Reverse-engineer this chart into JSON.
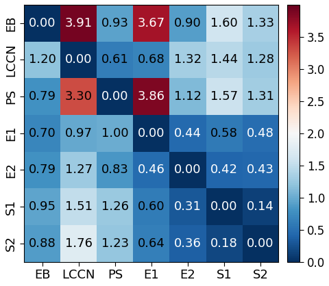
{
  "labels": [
    "EB",
    "LCCN",
    "PS",
    "E1",
    "E2",
    "S1",
    "S2"
  ],
  "matrix": [
    [
      0.0,
      3.91,
      0.93,
      3.67,
      0.9,
      1.6,
      1.33
    ],
    [
      1.2,
      0.0,
      0.61,
      0.68,
      1.32,
      1.44,
      1.28
    ],
    [
      0.79,
      3.3,
      0.0,
      3.86,
      1.12,
      1.57,
      1.31
    ],
    [
      0.7,
      0.97,
      1.0,
      0.0,
      0.44,
      0.58,
      0.48
    ],
    [
      0.79,
      1.27,
      0.83,
      0.46,
      0.0,
      0.42,
      0.43
    ],
    [
      0.95,
      1.51,
      1.26,
      0.6,
      0.31,
      0.0,
      0.14
    ],
    [
      0.88,
      1.76,
      1.23,
      0.64,
      0.36,
      0.18,
      0.0
    ]
  ],
  "colormap": "RdBu_r",
  "vmin": 0.0,
  "vmax": 4.0,
  "figsize": [
    4.8,
    4.18
  ],
  "dpi": 100,
  "annot_fontsize": 13,
  "tick_fontsize": 13,
  "cbar_tick_fontsize": 12,
  "cbar_ticks": [
    0.0,
    0.5,
    1.0,
    1.5,
    2.0,
    2.5,
    3.0,
    3.5
  ],
  "cbar_ticklabels": [
    "0.0",
    "0.5",
    "1.0",
    "1.5",
    "2.0",
    "2.5",
    "3.0",
    "3.5"
  ],
  "luminance_threshold": 0.4
}
